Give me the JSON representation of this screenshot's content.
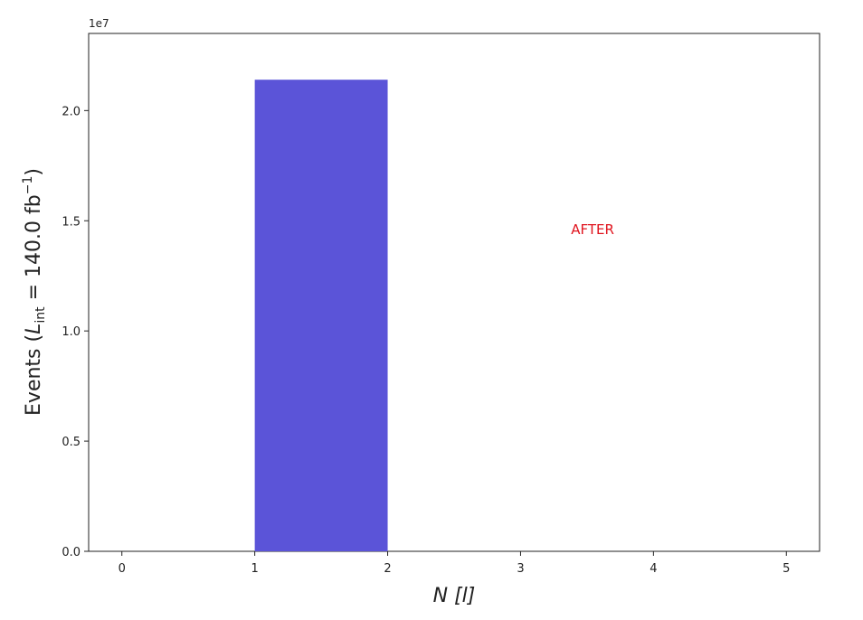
{
  "chart_data": {
    "type": "bar",
    "histogram": true,
    "bins": [
      {
        "x0": 1,
        "x1": 2,
        "value": 21400000
      }
    ],
    "xlim": [
      -0.25,
      5.25
    ],
    "ylim": [
      0,
      23500000
    ],
    "x_ticks": [
      0,
      1,
      2,
      3,
      4,
      5
    ],
    "x_tick_labels": [
      "0",
      "1",
      "2",
      "3",
      "4",
      "5"
    ],
    "y_ticks": [
      0,
      5000000,
      10000000,
      15000000,
      20000000
    ],
    "y_tick_labels": [
      "0.0",
      "0.5",
      "1.0",
      "1.5",
      "2.0"
    ],
    "y_offset_label": "1e7",
    "xlabel": "N [l]",
    "ylabel_prefix": "Events (",
    "ylabel_L": "L",
    "ylabel_sub": "int",
    "ylabel_mid": " = 140.0 fb",
    "ylabel_sup": "−1",
    "ylabel_suffix": ")",
    "annotation": {
      "text": "AFTER",
      "x": 3.38,
      "y": 14600000,
      "color": "#e0141e"
    },
    "bar_color": "#5b54d8",
    "grid": false,
    "legend": "none"
  }
}
